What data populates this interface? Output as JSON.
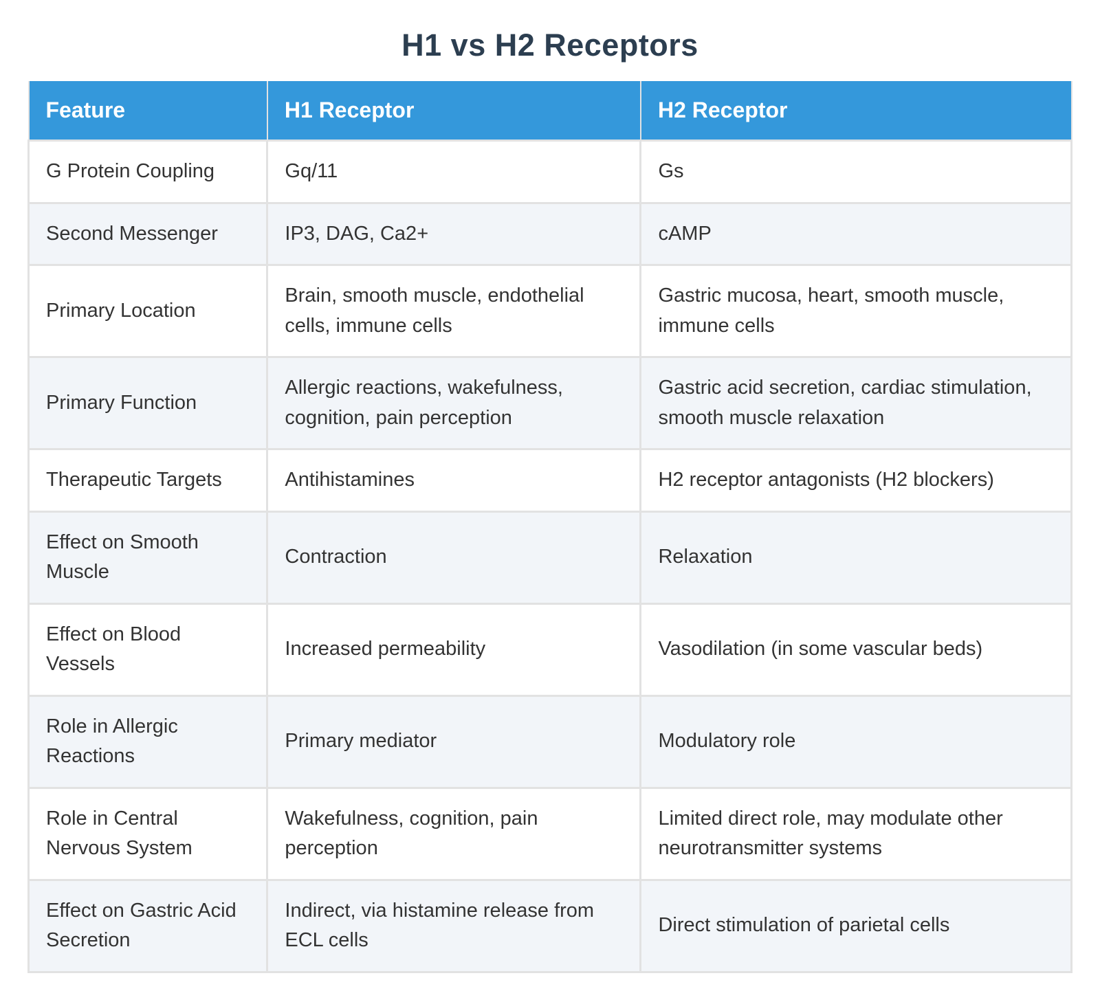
{
  "title": "H1 vs H2 Receptors",
  "colors": {
    "header_bg": "#3498db",
    "header_text": "#ffffff",
    "title_text": "#2c3e50",
    "body_text": "#333333",
    "row_alt_bg": "#f2f5f9",
    "border": "#e2e2e2"
  },
  "table": {
    "columns": [
      "Feature",
      "H1 Receptor",
      "H2 Receptor"
    ],
    "rows": [
      {
        "feature": "G Protein Coupling",
        "h1": "Gq/11",
        "h2": "Gs"
      },
      {
        "feature": "Second Messenger",
        "h1": "IP3, DAG, Ca2+",
        "h2": "cAMP"
      },
      {
        "feature": "Primary Location",
        "h1": "Brain, smooth muscle, endothelial cells, immune cells",
        "h2": "Gastric mucosa, heart, smooth muscle, immune cells"
      },
      {
        "feature": "Primary Function",
        "h1": "Allergic reactions, wakefulness, cognition, pain perception",
        "h2": "Gastric acid secretion, cardiac stimulation, smooth muscle relaxation"
      },
      {
        "feature": "Therapeutic Targets",
        "h1": "Antihistamines",
        "h2": "H2 receptor antagonists (H2 blockers)"
      },
      {
        "feature": "Effect on Smooth Muscle",
        "h1": "Contraction",
        "h2": "Relaxation"
      },
      {
        "feature": "Effect on Blood Vessels",
        "h1": "Increased permeability",
        "h2": "Vasodilation (in some vascular beds)"
      },
      {
        "feature": "Role in Allergic Reactions",
        "h1": "Primary mediator",
        "h2": "Modulatory role"
      },
      {
        "feature": "Role in Central Nervous System",
        "h1": "Wakefulness, cognition, pain perception",
        "h2": "Limited direct role, may modulate other neurotransmitter systems"
      },
      {
        "feature": "Effect on Gastric Acid Secretion",
        "h1": "Indirect, via histamine release from ECL cells",
        "h2": "Direct stimulation of parietal cells"
      }
    ]
  }
}
